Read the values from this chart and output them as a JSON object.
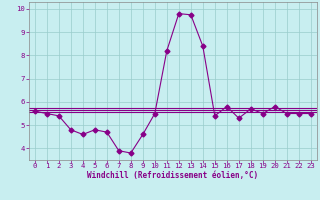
{
  "x": [
    0,
    1,
    2,
    3,
    4,
    5,
    6,
    7,
    8,
    9,
    10,
    11,
    12,
    13,
    14,
    15,
    16,
    17,
    18,
    19,
    20,
    21,
    22,
    23
  ],
  "y_main": [
    5.6,
    5.5,
    5.4,
    4.8,
    4.6,
    4.8,
    4.7,
    3.9,
    3.8,
    4.6,
    5.5,
    8.2,
    9.8,
    9.75,
    8.4,
    5.4,
    5.8,
    5.3,
    5.7,
    5.5,
    5.8,
    5.5,
    5.5,
    5.5
  ],
  "y_flat1": 5.75,
  "y_flat2": 5.65,
  "y_flat3": 5.55,
  "line_color": "#880088",
  "flat_color": "#880088",
  "bg_color": "#c8eef0",
  "grid_color": "#99cccc",
  "axis_color": "#880088",
  "spine_color": "#888888",
  "xlabel": "Windchill (Refroidissement éolien,°C)",
  "ylim": [
    3.5,
    10.3
  ],
  "xlim": [
    -0.5,
    23.5
  ],
  "yticks": [
    4,
    5,
    6,
    7,
    8,
    9,
    10
  ],
  "xticks": [
    0,
    1,
    2,
    3,
    4,
    5,
    6,
    7,
    8,
    9,
    10,
    11,
    12,
    13,
    14,
    15,
    16,
    17,
    18,
    19,
    20,
    21,
    22,
    23
  ],
  "marker": "D",
  "markersize": 2.5,
  "tick_fontsize": 5.2,
  "xlabel_fontsize": 5.5
}
